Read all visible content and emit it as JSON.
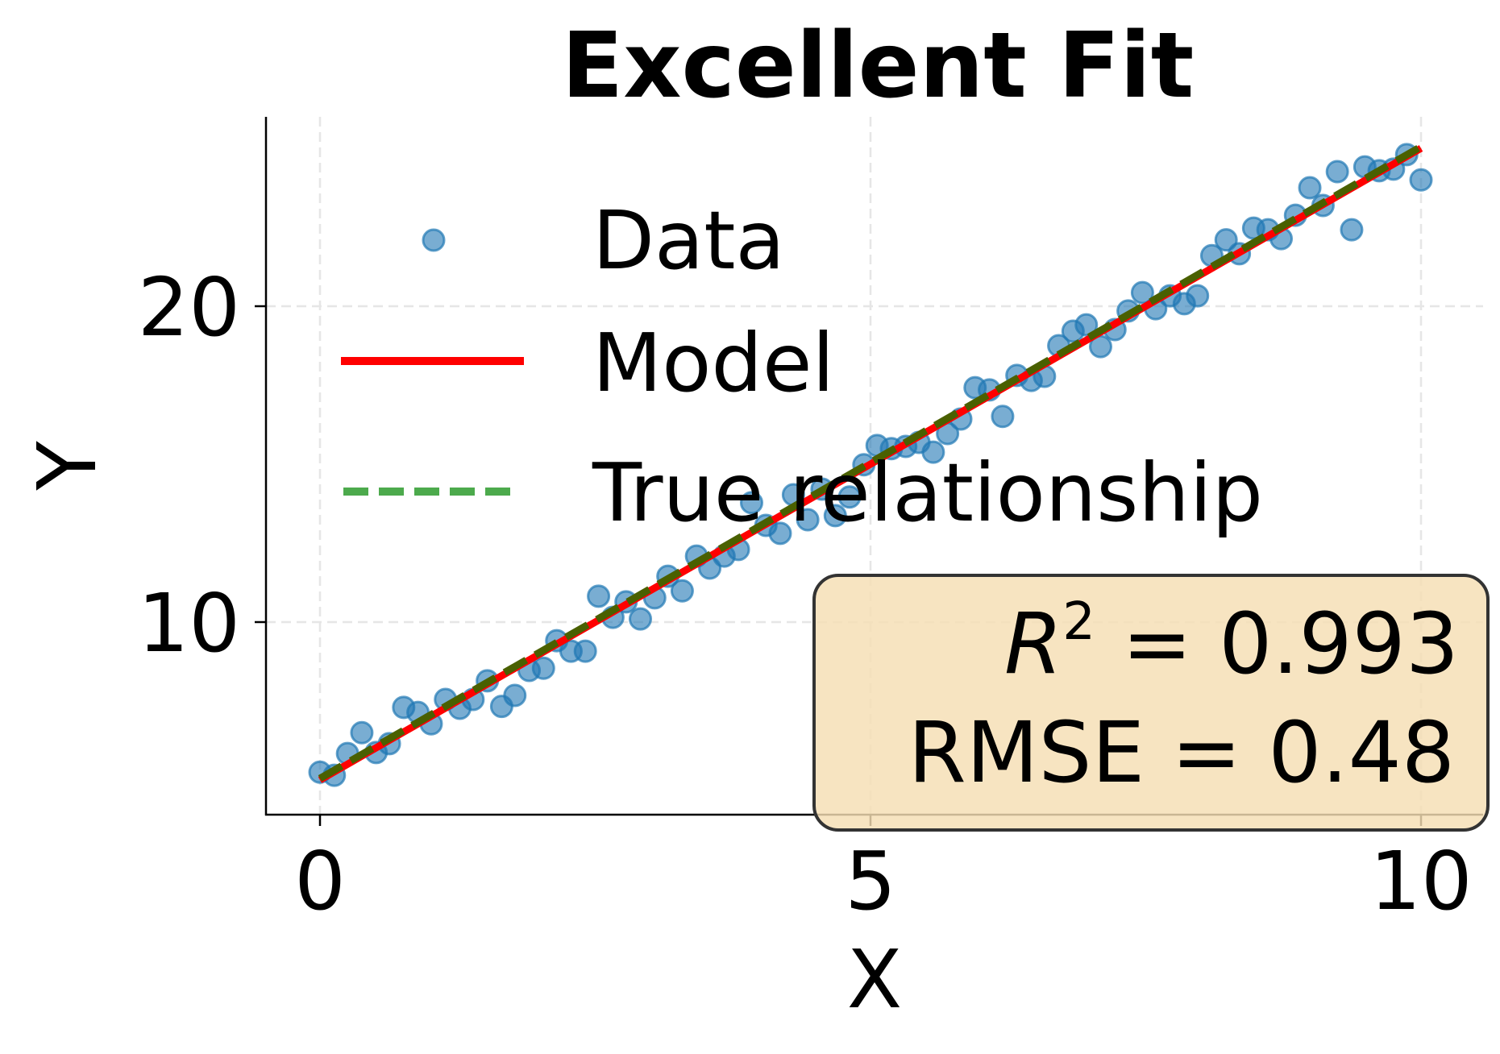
{
  "chart_data": {
    "type": "scatter",
    "title": "Excellent Fit",
    "xlabel": "X",
    "ylabel": "Y",
    "xlim": [
      -0.49,
      10.53
    ],
    "ylim": [
      3.9,
      26.0
    ],
    "xticks": [
      0,
      5,
      10
    ],
    "xtick_labels": [
      "0",
      "5",
      "10"
    ],
    "yticks": [
      10,
      20
    ],
    "ytick_labels": [
      "10",
      "20"
    ],
    "grid": true,
    "legend_position": "upper left",
    "legend": [
      {
        "label": "Data",
        "kind": "marker",
        "color": "#1f77b4"
      },
      {
        "label": "Model",
        "kind": "line",
        "color": "#ff0000"
      },
      {
        "label": "True relationship",
        "kind": "dashed-line",
        "color": "#4caa4c"
      }
    ],
    "series": [
      {
        "name": "Data",
        "kind": "scatter",
        "color": "#1f77b4",
        "x": [
          0.0,
          0.13,
          0.25,
          0.38,
          0.51,
          0.63,
          0.76,
          0.89,
          1.01,
          1.14,
          1.27,
          1.39,
          1.52,
          1.65,
          1.77,
          1.9,
          2.03,
          2.15,
          2.28,
          2.41,
          2.53,
          2.66,
          2.78,
          2.91,
          3.04,
          3.16,
          3.29,
          3.42,
          3.54,
          3.67,
          3.8,
          3.92,
          4.05,
          4.18,
          4.3,
          4.43,
          4.56,
          4.68,
          4.81,
          4.94,
          5.06,
          5.19,
          5.32,
          5.44,
          5.57,
          5.7,
          5.82,
          5.95,
          6.08,
          6.2,
          6.33,
          6.46,
          6.58,
          6.71,
          6.84,
          6.96,
          7.09,
          7.22,
          7.34,
          7.47,
          7.59,
          7.72,
          7.85,
          7.97,
          8.1,
          8.23,
          8.35,
          8.48,
          8.61,
          8.73,
          8.86,
          8.99,
          9.11,
          9.24,
          9.37,
          9.49,
          9.62,
          9.75,
          9.87,
          10.0
        ],
        "y": [
          5.25,
          5.15,
          5.84,
          6.5,
          5.87,
          6.15,
          7.3,
          7.14,
          6.78,
          7.55,
          7.27,
          7.55,
          8.14,
          7.33,
          7.68,
          8.47,
          8.54,
          9.41,
          9.08,
          9.08,
          10.82,
          10.15,
          10.64,
          10.1,
          10.77,
          11.45,
          10.99,
          12.09,
          11.71,
          12.09,
          12.3,
          13.78,
          13.06,
          12.81,
          14.03,
          13.24,
          14.21,
          13.37,
          13.96,
          14.98,
          15.59,
          15.49,
          15.56,
          15.69,
          15.38,
          15.97,
          16.43,
          17.42,
          17.35,
          16.51,
          17.81,
          17.65,
          17.78,
          18.75,
          19.21,
          19.41,
          18.72,
          19.26,
          19.85,
          20.43,
          19.92,
          20.33,
          20.08,
          20.33,
          21.6,
          22.1,
          21.66,
          22.47,
          22.42,
          22.14,
          22.88,
          23.75,
          23.19,
          24.26,
          22.42,
          24.41,
          24.29,
          24.34,
          24.8,
          24.0
        ]
      },
      {
        "name": "Model",
        "kind": "line",
        "color": "#ff0000",
        "x": [
          0,
          10
        ],
        "y": [
          5.0,
          25.0
        ]
      },
      {
        "name": "True relationship",
        "kind": "dashed-line",
        "color": "#4caa4c",
        "x": [
          0,
          10
        ],
        "y": [
          5.0,
          25.0
        ]
      }
    ],
    "annotations": [
      {
        "text": "R² = 0.993",
        "position": "lower right"
      },
      {
        "text": "RMSE = 0.48",
        "position": "lower right"
      }
    ]
  },
  "stats_box": {
    "r2_symbol": "R",
    "r2_exponent": "2",
    "r2_value": " = 0.993",
    "rmse_line": "RMSE = 0.48",
    "background": "#f5deb3",
    "border": "#333333"
  }
}
